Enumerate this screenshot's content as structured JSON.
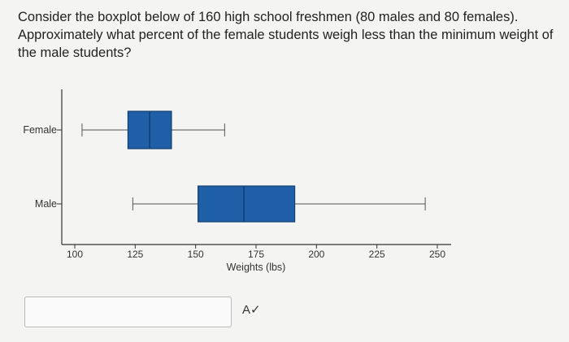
{
  "question": {
    "text": "Consider the boxplot below of 160 high school freshmen (80 males and 80 females). Approximately what percent of the female students weigh less than the minimum weight of the male students?"
  },
  "answer": {
    "value": "",
    "placeholder": ""
  },
  "spell_check_icon": "spell-check-icon",
  "colors": {
    "box_fill": "#1f5fa8",
    "box_stroke": "#123e70",
    "axis": "#333333",
    "background": "#f4f4f2"
  },
  "chart_data": {
    "type": "boxplot",
    "xlabel": "Weights (lbs)",
    "x_ticks": [
      100,
      125,
      150,
      175,
      200,
      225,
      250
    ],
    "xlim": [
      100,
      250
    ],
    "categories": [
      "Female",
      "Male"
    ],
    "series": [
      {
        "name": "Female",
        "min": 103,
        "q1": 122,
        "median": 131,
        "q3": 140,
        "max": 162
      },
      {
        "name": "Male",
        "min": 124,
        "q1": 151,
        "median": 170,
        "q3": 191,
        "max": 245
      }
    ],
    "grid": false,
    "legend": "none"
  }
}
